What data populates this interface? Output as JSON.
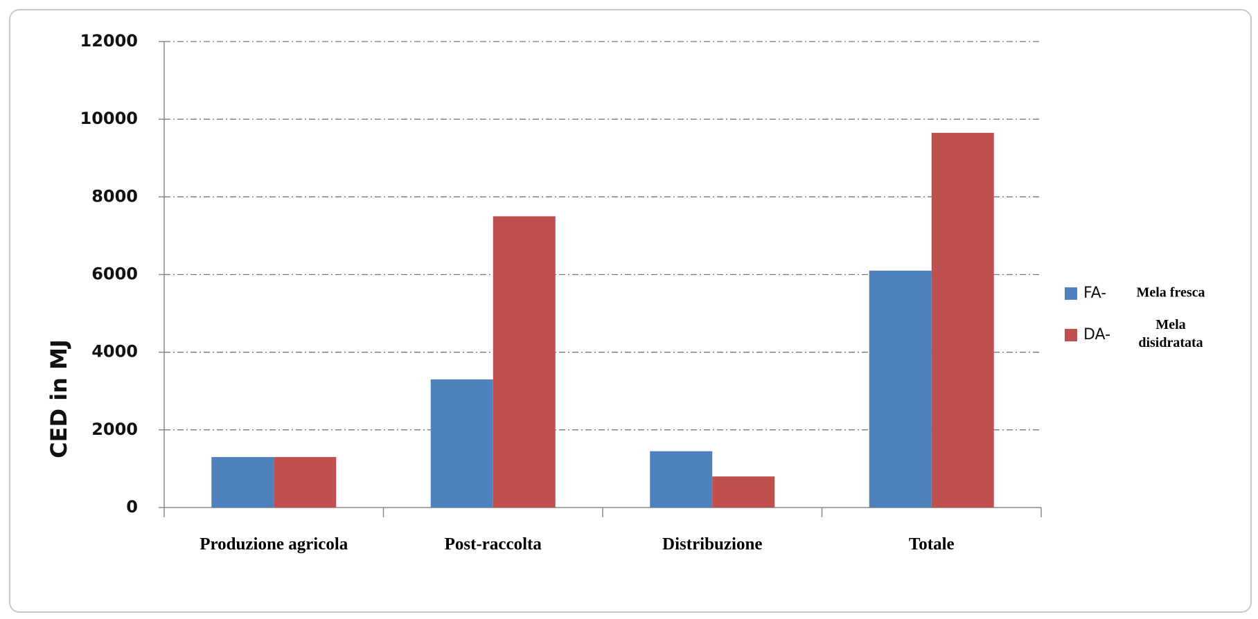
{
  "chart_data": {
    "type": "bar",
    "y_label": "CED in MJ",
    "categories": [
      "Produzione agricola",
      "Post-raccolta",
      "Distribuzione",
      "Totale"
    ],
    "series": [
      {
        "name": "FA-",
        "description": "Mela fresca",
        "color": "#4f81bd",
        "values": [
          1300,
          3300,
          1450,
          6100
        ]
      },
      {
        "name": "DA-",
        "description": "Mela disidratata",
        "color": "#c0504d",
        "values": [
          1300,
          7500,
          800,
          9650
        ]
      }
    ],
    "ylim": [
      0,
      12000
    ],
    "yticks": [
      0,
      2000,
      4000,
      6000,
      8000,
      10000,
      12000
    ],
    "grid": true
  }
}
